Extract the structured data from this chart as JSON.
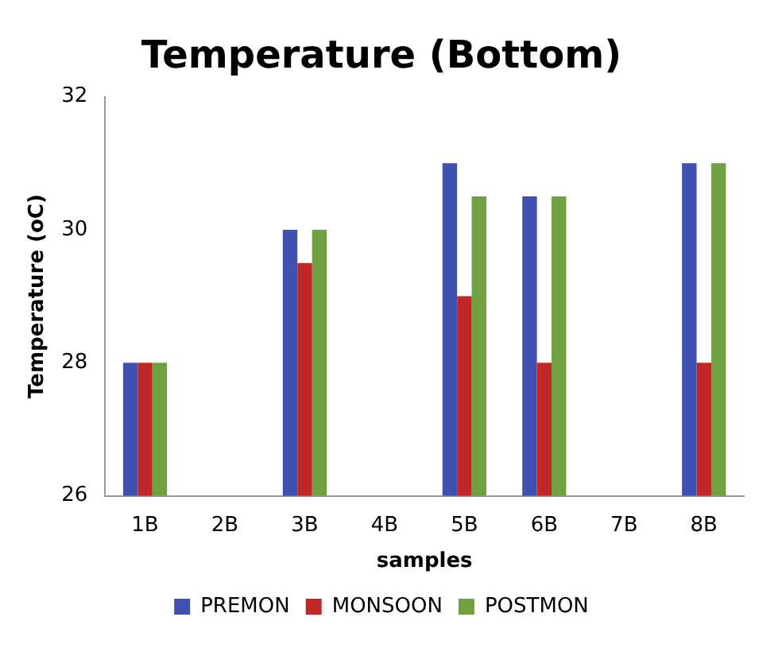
{
  "chart_data": {
    "type": "bar",
    "title": "Temperature (Bottom)",
    "xlabel": "samples",
    "ylabel": "Temperature (oC)",
    "categories": [
      "1B",
      "2B",
      "3B",
      "4B",
      "5B",
      "6B",
      "7B",
      "8B"
    ],
    "series": [
      {
        "name": "PREMON",
        "color": "#4050b0",
        "values": [
          28,
          null,
          30,
          null,
          31,
          30.5,
          null,
          31
        ]
      },
      {
        "name": "MONSOON",
        "color": "#c02828",
        "values": [
          28,
          null,
          29.5,
          null,
          29,
          28,
          null,
          28
        ]
      },
      {
        "name": "POSTMON",
        "color": "#70a040",
        "values": [
          28,
          null,
          30,
          null,
          30.5,
          30.5,
          null,
          31
        ]
      }
    ],
    "ylim": [
      26,
      32
    ],
    "yticks": [
      26,
      28,
      30,
      32
    ],
    "grid": false,
    "legend": "bottom"
  }
}
